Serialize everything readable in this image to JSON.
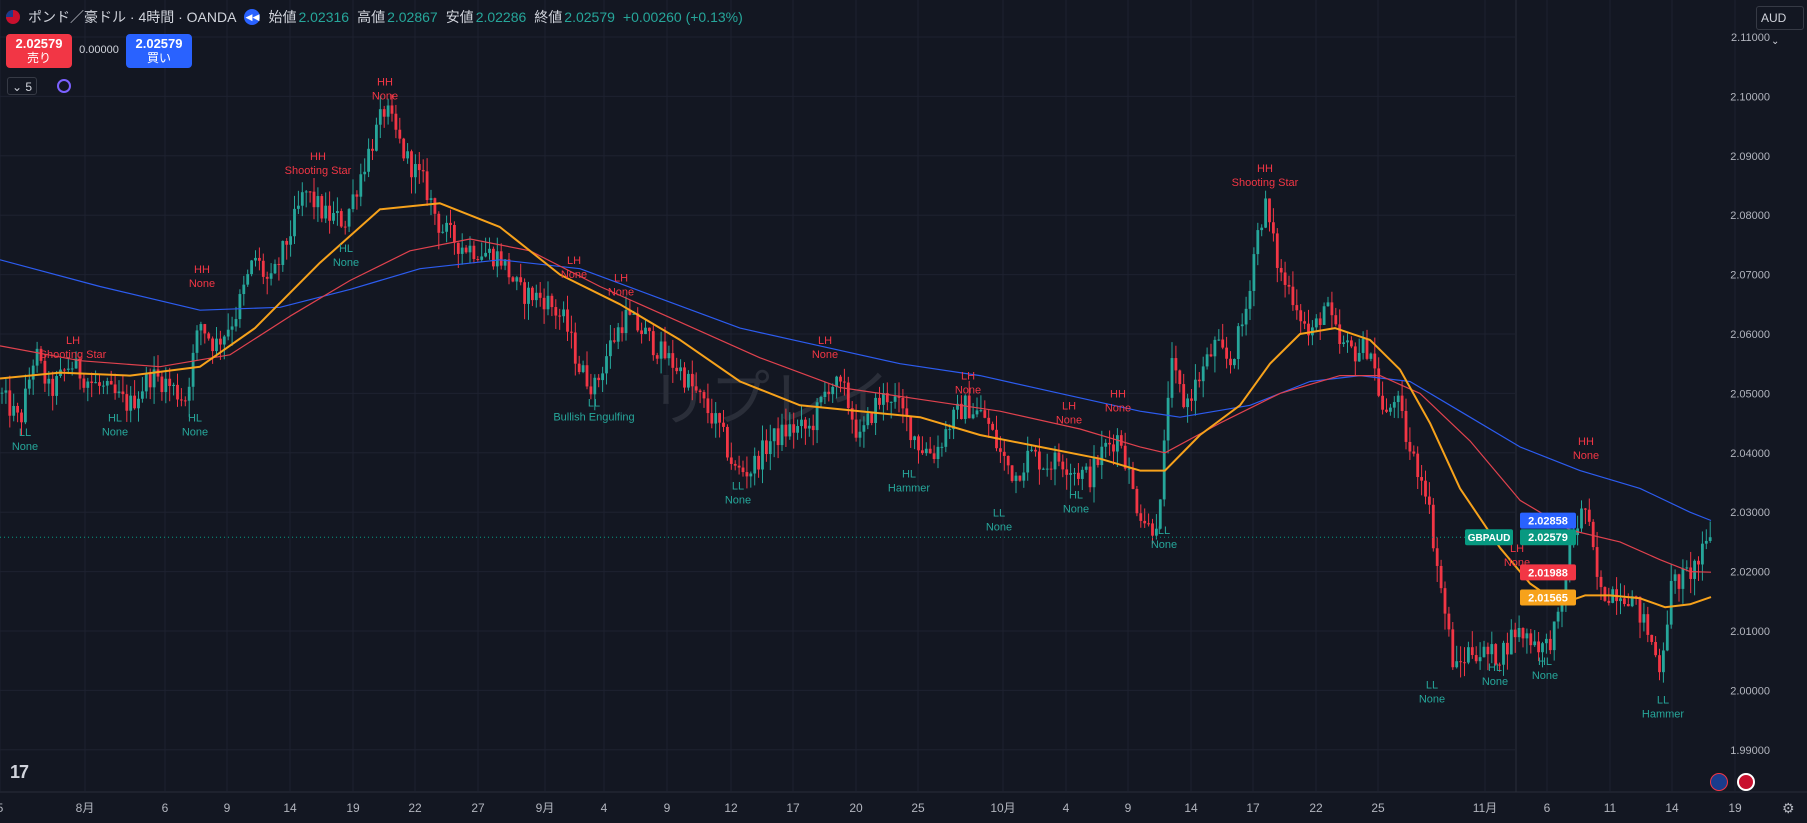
{
  "header": {
    "symbol": "ポンド／豪ドル · 4時間 · OANDA",
    "open_label": "始値",
    "open": "2.02316",
    "high_label": "高値",
    "high": "2.02867",
    "low_label": "安値",
    "low": "2.02286",
    "close_label": "終値",
    "close": "2.02579",
    "change": "+0.00260 (+0.13%)",
    "currency": "AUD"
  },
  "trade": {
    "sell_price": "2.02579",
    "sell_label": "売り",
    "buy_price": "2.02579",
    "buy_label": "買い",
    "spread": "0.00000"
  },
  "indicators": {
    "collapsed_count": "5"
  },
  "watermark": "リプレイ",
  "colors": {
    "background": "#131722",
    "grid": "#1e2230",
    "up": "#26a69a",
    "down": "#f23645",
    "ma_short": "#f7a21b",
    "ma_mid": "#e0424e",
    "ma_long": "#2c5cf0",
    "label_high": "#f23645",
    "label_low": "#26a69a"
  },
  "chart_data": {
    "type": "candlestick",
    "symbol_tag": "GBPAUD",
    "ylim": [
      1.985,
      2.115
    ],
    "y_ticks": [
      "2.11000",
      "2.10000",
      "2.09000",
      "2.08000",
      "2.07000",
      "2.06000",
      "2.05000",
      "2.04000",
      "2.03000",
      "2.02000",
      "2.01000",
      "2.00000",
      "1.99000"
    ],
    "x_ticks": [
      {
        "label": "5",
        "x": 0
      },
      {
        "label": "8月",
        "x": 85
      },
      {
        "label": "6",
        "x": 165
      },
      {
        "label": "9",
        "x": 227
      },
      {
        "label": "14",
        "x": 290
      },
      {
        "label": "19",
        "x": 353
      },
      {
        "label": "22",
        "x": 415
      },
      {
        "label": "27",
        "x": 478
      },
      {
        "label": "9月",
        "x": 545
      },
      {
        "label": "4",
        "x": 604
      },
      {
        "label": "9",
        "x": 667
      },
      {
        "label": "12",
        "x": 731
      },
      {
        "label": "17",
        "x": 793
      },
      {
        "label": "20",
        "x": 856
      },
      {
        "label": "25",
        "x": 918
      },
      {
        "label": "10月",
        "x": 1003
      },
      {
        "label": "4",
        "x": 1066
      },
      {
        "label": "9",
        "x": 1128
      },
      {
        "label": "14",
        "x": 1191
      },
      {
        "label": "17",
        "x": 1253
      },
      {
        "label": "22",
        "x": 1316
      },
      {
        "label": "25",
        "x": 1378
      },
      {
        "label": "11月",
        "x": 1485
      },
      {
        "label": "6",
        "x": 1547
      },
      {
        "label": "11",
        "x": 1610
      },
      {
        "label": "14",
        "x": 1672
      },
      {
        "label": "19",
        "x": 1735
      }
    ],
    "price_path": [
      [
        0,
        2.05
      ],
      [
        20,
        2.045
      ],
      [
        35,
        2.057
      ],
      [
        50,
        2.05
      ],
      [
        70,
        2.055
      ],
      [
        90,
        2.052
      ],
      [
        110,
        2.05
      ],
      [
        130,
        2.048
      ],
      [
        150,
        2.053
      ],
      [
        165,
        2.052
      ],
      [
        185,
        2.049
      ],
      [
        200,
        2.062
      ],
      [
        215,
        2.058
      ],
      [
        235,
        2.063
      ],
      [
        255,
        2.073
      ],
      [
        270,
        2.068
      ],
      [
        290,
        2.077
      ],
      [
        305,
        2.084
      ],
      [
        325,
        2.08
      ],
      [
        345,
        2.079
      ],
      [
        365,
        2.089
      ],
      [
        385,
        2.098
      ],
      [
        405,
        2.09
      ],
      [
        425,
        2.085
      ],
      [
        440,
        2.078
      ],
      [
        460,
        2.075
      ],
      [
        480,
        2.074
      ],
      [
        500,
        2.073
      ],
      [
        520,
        2.067
      ],
      [
        545,
        2.066
      ],
      [
        565,
        2.062
      ],
      [
        580,
        2.054
      ],
      [
        595,
        2.051
      ],
      [
        610,
        2.058
      ],
      [
        625,
        2.063
      ],
      [
        645,
        2.06
      ],
      [
        660,
        2.057
      ],
      [
        680,
        2.054
      ],
      [
        700,
        2.049
      ],
      [
        720,
        2.044
      ],
      [
        735,
        2.037
      ],
      [
        750,
        2.037
      ],
      [
        770,
        2.042
      ],
      [
        790,
        2.044
      ],
      [
        810,
        2.044
      ],
      [
        830,
        2.052
      ],
      [
        845,
        2.05
      ],
      [
        860,
        2.042
      ],
      [
        875,
        2.048
      ],
      [
        890,
        2.05
      ],
      [
        905,
        2.046
      ],
      [
        920,
        2.041
      ],
      [
        935,
        2.04
      ],
      [
        950,
        2.045
      ],
      [
        965,
        2.048
      ],
      [
        985,
        2.046
      ],
      [
        1000,
        2.04
      ],
      [
        1015,
        2.036
      ],
      [
        1030,
        2.04
      ],
      [
        1045,
        2.038
      ],
      [
        1060,
        2.039
      ],
      [
        1075,
        2.037
      ],
      [
        1090,
        2.036
      ],
      [
        1105,
        2.041
      ],
      [
        1120,
        2.043
      ],
      [
        1135,
        2.032
      ],
      [
        1150,
        2.027
      ],
      [
        1160,
        2.03
      ],
      [
        1170,
        2.055
      ],
      [
        1185,
        2.048
      ],
      [
        1200,
        2.053
      ],
      [
        1215,
        2.058
      ],
      [
        1230,
        2.055
      ],
      [
        1245,
        2.063
      ],
      [
        1255,
        2.075
      ],
      [
        1265,
        2.082
      ],
      [
        1280,
        2.07
      ],
      [
        1295,
        2.066
      ],
      [
        1310,
        2.059
      ],
      [
        1325,
        2.065
      ],
      [
        1340,
        2.058
      ],
      [
        1355,
        2.057
      ],
      [
        1370,
        2.058
      ],
      [
        1385,
        2.045
      ],
      [
        1395,
        2.05
      ],
      [
        1410,
        2.04
      ],
      [
        1425,
        2.035
      ],
      [
        1440,
        2.018
      ],
      [
        1455,
        2.003
      ],
      [
        1470,
        2.007
      ],
      [
        1485,
        2.006
      ],
      [
        1500,
        2.006
      ],
      [
        1515,
        2.01
      ],
      [
        1530,
        2.009
      ],
      [
        1545,
        2.007
      ],
      [
        1560,
        2.012
      ],
      [
        1570,
        2.025
      ],
      [
        1585,
        2.031
      ],
      [
        1600,
        2.016
      ],
      [
        1615,
        2.017
      ],
      [
        1630,
        2.016
      ],
      [
        1645,
        2.011
      ],
      [
        1660,
        2.004
      ],
      [
        1672,
        2.018
      ],
      [
        1685,
        2.019
      ],
      [
        1700,
        2.022
      ],
      [
        1711,
        2.0258
      ]
    ],
    "ma_short": [
      [
        0,
        2.0525
      ],
      [
        60,
        2.0535
      ],
      [
        130,
        2.053
      ],
      [
        200,
        2.0545
      ],
      [
        255,
        2.061
      ],
      [
        320,
        2.072
      ],
      [
        380,
        2.081
      ],
      [
        440,
        2.082
      ],
      [
        500,
        2.078
      ],
      [
        560,
        2.07
      ],
      [
        620,
        2.065
      ],
      [
        680,
        2.059
      ],
      [
        740,
        2.052
      ],
      [
        800,
        2.048
      ],
      [
        860,
        2.047
      ],
      [
        920,
        2.046
      ],
      [
        980,
        2.043
      ],
      [
        1040,
        2.041
      ],
      [
        1100,
        2.039
      ],
      [
        1140,
        2.037
      ],
      [
        1165,
        2.037
      ],
      [
        1200,
        2.043
      ],
      [
        1240,
        2.048
      ],
      [
        1270,
        2.055
      ],
      [
        1300,
        2.06
      ],
      [
        1335,
        2.061
      ],
      [
        1370,
        2.059
      ],
      [
        1400,
        2.054
      ],
      [
        1430,
        2.045
      ],
      [
        1460,
        2.034
      ],
      [
        1500,
        2.024
      ],
      [
        1530,
        2.018
      ],
      [
        1560,
        2.0145
      ],
      [
        1585,
        2.016
      ],
      [
        1610,
        2.016
      ],
      [
        1640,
        2.0155
      ],
      [
        1665,
        2.014
      ],
      [
        1690,
        2.0145
      ],
      [
        1711,
        2.0157
      ]
    ],
    "ma_mid": [
      [
        0,
        2.058
      ],
      [
        80,
        2.0555
      ],
      [
        160,
        2.0545
      ],
      [
        230,
        2.0565
      ],
      [
        290,
        2.063
      ],
      [
        350,
        2.069
      ],
      [
        410,
        2.074
      ],
      [
        470,
        2.076
      ],
      [
        530,
        2.074
      ],
      [
        600,
        2.068
      ],
      [
        680,
        2.062
      ],
      [
        760,
        2.056
      ],
      [
        840,
        2.051
      ],
      [
        920,
        2.049
      ],
      [
        1000,
        2.047
      ],
      [
        1080,
        2.044
      ],
      [
        1140,
        2.041
      ],
      [
        1165,
        2.04
      ],
      [
        1220,
        2.045
      ],
      [
        1280,
        2.05
      ],
      [
        1340,
        2.053
      ],
      [
        1380,
        2.053
      ],
      [
        1420,
        2.05
      ],
      [
        1470,
        2.042
      ],
      [
        1520,
        2.032
      ],
      [
        1570,
        2.027
      ],
      [
        1620,
        2.025
      ],
      [
        1660,
        2.022
      ],
      [
        1690,
        2.02
      ],
      [
        1711,
        2.0199
      ]
    ],
    "ma_long": [
      [
        0,
        2.0725
      ],
      [
        100,
        2.068
      ],
      [
        200,
        2.064
      ],
      [
        280,
        2.0645
      ],
      [
        350,
        2.0675
      ],
      [
        420,
        2.071
      ],
      [
        500,
        2.0725
      ],
      [
        580,
        2.071
      ],
      [
        660,
        2.066
      ],
      [
        740,
        2.061
      ],
      [
        820,
        2.058
      ],
      [
        900,
        2.055
      ],
      [
        980,
        2.053
      ],
      [
        1060,
        2.05
      ],
      [
        1140,
        2.047
      ],
      [
        1180,
        2.046
      ],
      [
        1250,
        2.048
      ],
      [
        1310,
        2.052
      ],
      [
        1360,
        2.053
      ],
      [
        1410,
        2.052
      ],
      [
        1460,
        2.047
      ],
      [
        1520,
        2.041
      ],
      [
        1580,
        2.037
      ],
      [
        1640,
        2.034
      ],
      [
        1690,
        2.03
      ],
      [
        1711,
        2.0286
      ]
    ],
    "pattern_labels": [
      {
        "l1": "LL",
        "l2": "None",
        "x": 25,
        "y": 2.0428,
        "kind": "low"
      },
      {
        "l1": "LH",
        "l2": "Shooting Star",
        "x": 73,
        "y": 2.0583,
        "kind": "high"
      },
      {
        "l1": "HL",
        "l2": "None",
        "x": 115,
        "y": 2.0453,
        "kind": "low"
      },
      {
        "l1": "HL",
        "l2": "None",
        "x": 195,
        "y": 2.0453,
        "kind": "low"
      },
      {
        "l1": "HH",
        "l2": "None",
        "x": 202,
        "y": 2.0703,
        "kind": "high"
      },
      {
        "l1": "HH",
        "l2": "Shooting Star",
        "x": 318,
        "y": 2.0893,
        "kind": "high"
      },
      {
        "l1": "HL",
        "l2": "None",
        "x": 346,
        "y": 2.0738,
        "kind": "low"
      },
      {
        "l1": "HH",
        "l2": "None",
        "x": 385,
        "y": 2.1018,
        "kind": "high"
      },
      {
        "l1": "LH",
        "l2": "None",
        "x": 574,
        "y": 2.0718,
        "kind": "high"
      },
      {
        "l1": "LH",
        "l2": "None",
        "x": 621,
        "y": 2.0688,
        "kind": "high"
      },
      {
        "l1": "LL",
        "l2": "Bullish Engulfing",
        "x": 594,
        "y": 2.0478,
        "kind": "low"
      },
      {
        "l1": "LL",
        "l2": "None",
        "x": 738,
        "y": 2.0338,
        "kind": "low"
      },
      {
        "l1": "LH",
        "l2": "None",
        "x": 825,
        "y": 2.0583,
        "kind": "high"
      },
      {
        "l1": "HL",
        "l2": "Hammer",
        "x": 909,
        "y": 2.0358,
        "kind": "low"
      },
      {
        "l1": "LH",
        "l2": "None",
        "x": 968,
        "y": 2.0523,
        "kind": "high"
      },
      {
        "l1": "LL",
        "l2": "None",
        "x": 999,
        "y": 2.0293,
        "kind": "low"
      },
      {
        "l1": "LH",
        "l2": "None",
        "x": 1069,
        "y": 2.0473,
        "kind": "high"
      },
      {
        "l1": "HL",
        "l2": "None",
        "x": 1076,
        "y": 2.0323,
        "kind": "low"
      },
      {
        "l1": "HH",
        "l2": "None",
        "x": 1118,
        "y": 2.0493,
        "kind": "high"
      },
      {
        "l1": "LL",
        "l2": "None",
        "x": 1164,
        "y": 2.0263,
        "kind": "low"
      },
      {
        "l1": "HH",
        "l2": "Shooting Star",
        "x": 1265,
        "y": 2.0873,
        "kind": "high"
      },
      {
        "l1": "LL",
        "l2": "None",
        "x": 1432,
        "y": 2.0003,
        "kind": "low"
      },
      {
        "l1": "HL",
        "l2": "None",
        "x": 1495,
        "y": 2.0033,
        "kind": "low"
      },
      {
        "l1": "HL",
        "l2": "None",
        "x": 1545,
        "y": 2.0043,
        "kind": "low"
      },
      {
        "l1": "LH",
        "l2": "None",
        "x": 1517,
        "y": 2.0233,
        "kind": "high"
      },
      {
        "l1": "HH",
        "l2": "None",
        "x": 1586,
        "y": 2.0413,
        "kind": "high"
      },
      {
        "l1": "LL",
        "l2": "Hammer",
        "x": 1663,
        "y": 1.9978,
        "kind": "low"
      }
    ],
    "price_tags": [
      {
        "text": "2.02858",
        "value": 2.02858,
        "color": "#2962ff"
      },
      {
        "text": "2.02579",
        "value": 2.02579,
        "color": "#089981"
      },
      {
        "text": "2.01988",
        "value": 2.01988,
        "color": "#f23645"
      },
      {
        "text": "2.01565",
        "value": 2.01565,
        "color": "#f7a21b"
      }
    ],
    "last_price": 2.02579
  }
}
